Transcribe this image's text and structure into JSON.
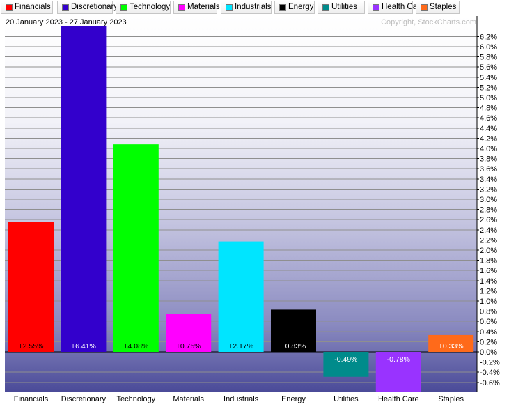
{
  "legend": [
    {
      "label": "Financials",
      "color": "#ff0000"
    },
    {
      "label": "Discretionary",
      "color": "#3300cc"
    },
    {
      "label": "Technology",
      "color": "#00ff00"
    },
    {
      "label": "Materials",
      "color": "#ff00ff"
    },
    {
      "label": "Industrials",
      "color": "#00e5ff"
    },
    {
      "label": "Energy",
      "color": "#000000"
    },
    {
      "label": "Utilities",
      "color": "#008b8b"
    },
    {
      "label": "Health Care",
      "color": "#9933ff"
    },
    {
      "label": "Staples",
      "color": "#ff6a1a"
    }
  ],
  "date_range": "20 January 2023 - 27 January 2023",
  "copyright": "Copyright, StockCharts.com",
  "chart_data": {
    "type": "bar",
    "title": "",
    "xlabel": "",
    "ylabel": "",
    "categories": [
      "Financials",
      "Discretionary",
      "Technology",
      "Materials",
      "Industrials",
      "Energy",
      "Utilities",
      "Health Care",
      "Staples"
    ],
    "values": [
      2.55,
      6.41,
      4.08,
      0.75,
      2.17,
      0.83,
      -0.49,
      -0.78,
      0.33
    ],
    "data_labels": [
      "+2.55%",
      "+6.41%",
      "+4.08%",
      "+0.75%",
      "+2.17%",
      "+0.83%",
      "-0.49%",
      "-0.78%",
      "+0.33%"
    ],
    "colors": [
      "#ff0000",
      "#3300cc",
      "#00ff00",
      "#ff00ff",
      "#00e5ff",
      "#000000",
      "#008b8b",
      "#9933ff",
      "#ff6a1a"
    ],
    "label_colors": [
      "#000000",
      "#ffffff",
      "#000000",
      "#000000",
      "#000000",
      "#ffffff",
      "#ffffff",
      "#ffffff",
      "#ffffff"
    ],
    "ylim": [
      -0.8,
      6.3
    ],
    "y_ticks": [
      6.2,
      6.0,
      5.8,
      5.6,
      5.4,
      5.2,
      5.0,
      4.8,
      4.6,
      4.4,
      4.2,
      4.0,
      3.8,
      3.6,
      3.4,
      3.2,
      3.0,
      2.8,
      2.6,
      2.4,
      2.2,
      2.0,
      1.8,
      1.6,
      1.4,
      1.2,
      1.0,
      0.8,
      0.6,
      0.4,
      0.2,
      0.0,
      -0.2,
      -0.4,
      -0.6
    ],
    "y_tick_labels": [
      "6.2%",
      "6.0%",
      "5.8%",
      "5.6%",
      "5.4%",
      "5.2%",
      "5.0%",
      "4.8%",
      "4.6%",
      "4.4%",
      "4.2%",
      "4.0%",
      "3.8%",
      "3.6%",
      "3.4%",
      "3.2%",
      "3.0%",
      "2.8%",
      "2.6%",
      "2.4%",
      "2.2%",
      "2.0%",
      "1.8%",
      "1.6%",
      "1.4%",
      "1.2%",
      "1.0%",
      "0.8%",
      "0.6%",
      "0.4%",
      "0.2%",
      "0.0%",
      "-0.2%",
      "-0.4%",
      "-0.6%"
    ],
    "y_axis_side": "right",
    "grid": true
  }
}
